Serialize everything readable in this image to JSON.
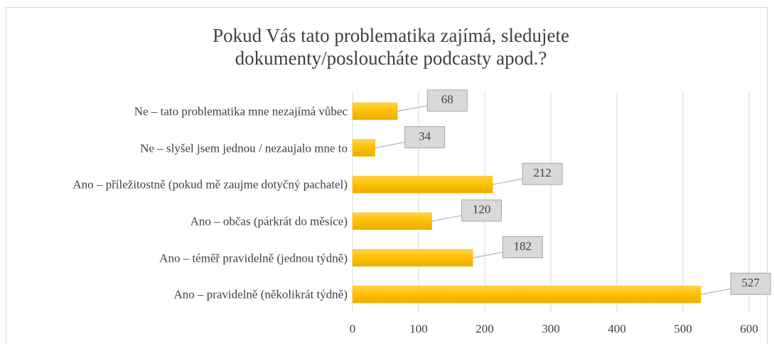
{
  "chart_data": {
    "type": "bar",
    "orientation": "horizontal",
    "title": "Pokud Vás tato problematika zajímá, sledujete dokumenty/posloucháte podcasty apod.?",
    "categories": [
      "Ne – tato problematika mne nezajímá vůbec",
      "Ne – slyšel jsem jednou / nezaujalo mne to",
      "Ano – příležitostně (pokud mě zaujme dotyčný pachatel)",
      "Ano – občas (párkrát do měsíce)",
      "Ano – téměř pravidelně (jednou týdně)",
      "Ano – pravidelně (několikrát týdně)"
    ],
    "values": [
      68,
      34,
      212,
      120,
      182,
      527
    ],
    "color": "#ffc000",
    "xlim": [
      0,
      600
    ],
    "xticks": [
      0,
      100,
      200,
      300,
      400,
      500,
      600
    ],
    "grid": true
  }
}
